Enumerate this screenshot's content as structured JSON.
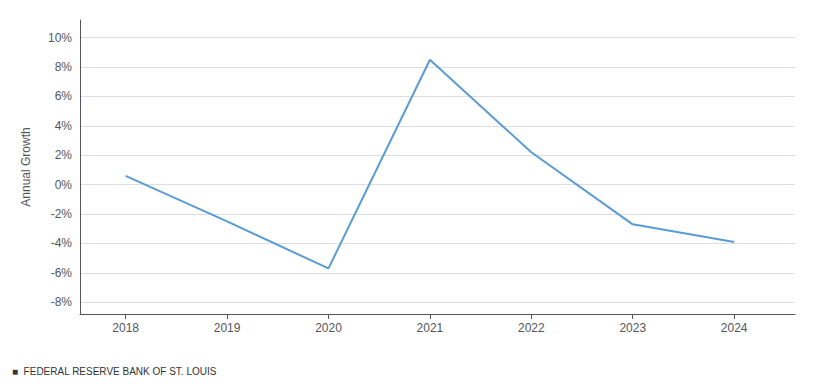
{
  "chart_data": {
    "type": "line",
    "x": [
      2018,
      2019,
      2020,
      2021,
      2022,
      2023,
      2024
    ],
    "values": [
      0.6,
      -2.5,
      -5.7,
      8.5,
      2.2,
      -2.7,
      -3.9
    ],
    "color": "#5b9bd5",
    "ylabel": "Annual Growth",
    "xlim": [
      2017.55,
      2024.6
    ],
    "xticks": [
      2018,
      2019,
      2020,
      2021,
      2022,
      2023,
      2024
    ],
    "ylim": [
      -8.8,
      11.2
    ],
    "yticks": [
      {
        "value": -8,
        "label": "-8%"
      },
      {
        "value": -6,
        "label": "-6%"
      },
      {
        "value": -4,
        "label": "-4%"
      },
      {
        "value": -2,
        "label": "-2%"
      },
      {
        "value": 0,
        "label": "0%"
      },
      {
        "value": 2,
        "label": "2%"
      },
      {
        "value": 4,
        "label": "4%"
      },
      {
        "value": 6,
        "label": "6%"
      },
      {
        "value": 8,
        "label": "8%"
      },
      {
        "value": 10,
        "label": "10%"
      }
    ],
    "grid": true,
    "annotations": [
      "■  FEDERAL RESERVE BANK OF ST. LOUIS"
    ]
  }
}
